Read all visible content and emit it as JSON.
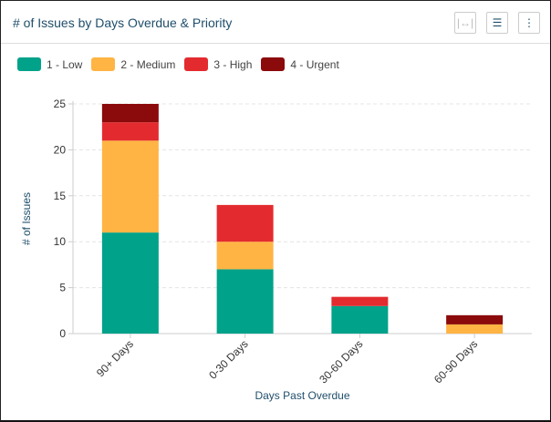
{
  "header": {
    "title": "# of Issues by Days Overdue & Priority",
    "buttons": [
      "fit-width-icon",
      "filter-icon",
      "more-icon"
    ]
  },
  "chart_data": {
    "type": "bar",
    "stacked": true,
    "title": "# of Issues by Days Overdue & Priority",
    "xlabel": "Days Past Overdue",
    "ylabel": "# of Issues",
    "categories": [
      "90+ Days",
      "0-30 Days",
      "30-60 Days",
      "60-90 Days"
    ],
    "series": [
      {
        "name": "1 - Low",
        "color": "#00a28a",
        "values": [
          11,
          7,
          3,
          0
        ]
      },
      {
        "name": "2 - Medium",
        "color": "#ffb444",
        "values": [
          10,
          3,
          0,
          1
        ]
      },
      {
        "name": "3 - High",
        "color": "#e32b2f",
        "values": [
          2,
          4,
          1,
          0
        ]
      },
      {
        "name": "4 - Urgent",
        "color": "#8b0a0b",
        "values": [
          2,
          0,
          0,
          1
        ]
      }
    ],
    "ylim": [
      0,
      25
    ],
    "yticks": [
      0,
      5,
      10,
      15,
      20,
      25
    ],
    "grid": true,
    "legend": "top-left"
  }
}
